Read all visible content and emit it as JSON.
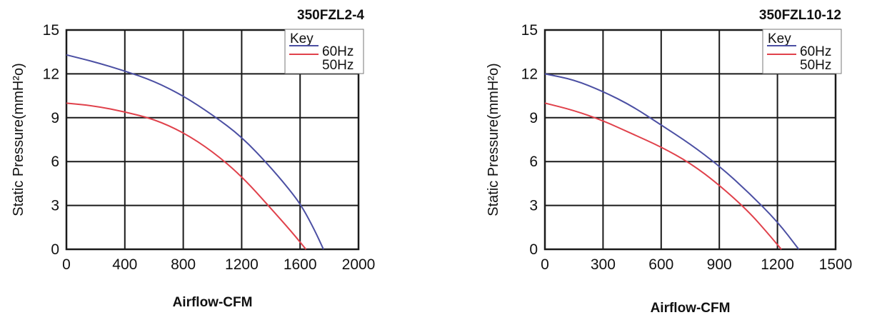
{
  "chart_data": [
    {
      "type": "line",
      "title": "350FZL2-4",
      "xlabel": "Airflow-CFM",
      "ylabel": "Static Pressure(mmH²o)",
      "xlim": [
        0,
        2000
      ],
      "ylim": [
        0,
        15
      ],
      "xticks": [
        0,
        400,
        800,
        1200,
        1600,
        2000
      ],
      "yticks": [
        0,
        3,
        6,
        9,
        12,
        15
      ],
      "grid": true,
      "legend": {
        "title": "Key",
        "placement": "top-right",
        "entries": [
          "60Hz",
          "50Hz"
        ]
      },
      "series": [
        {
          "name": "60Hz",
          "color": "#4b4fa3",
          "points": [
            [
              0,
              13.3
            ],
            [
              200,
              12.8
            ],
            [
              400,
              12.2
            ],
            [
              600,
              11.5
            ],
            [
              800,
              10.5
            ],
            [
              1000,
              9.2
            ],
            [
              1200,
              7.7
            ],
            [
              1400,
              5.6
            ],
            [
              1550,
              3.8
            ],
            [
              1620,
              2.8
            ],
            [
              1700,
              1.3
            ],
            [
              1760,
              0
            ]
          ]
        },
        {
          "name": "50Hz",
          "color": "#e0414b",
          "points": [
            [
              0,
              10.0
            ],
            [
              200,
              9.8
            ],
            [
              400,
              9.4
            ],
            [
              600,
              8.9
            ],
            [
              800,
              8.0
            ],
            [
              1000,
              6.7
            ],
            [
              1200,
              5.0
            ],
            [
              1400,
              2.8
            ],
            [
              1550,
              1.1
            ],
            [
              1640,
              0
            ]
          ]
        }
      ]
    },
    {
      "type": "line",
      "title": "350FZL10-12",
      "xlabel": "Airflow-CFM",
      "ylabel": "Static Pressure(mmH²o)",
      "xlim": [
        0,
        1500
      ],
      "ylim": [
        0,
        15
      ],
      "xticks": [
        0,
        300,
        600,
        900,
        1200,
        1500
      ],
      "yticks": [
        0,
        3,
        6,
        9,
        12,
        15
      ],
      "grid": true,
      "legend": {
        "title": "Key",
        "placement": "top-right",
        "entries": [
          "60Hz",
          "50Hz"
        ]
      },
      "series": [
        {
          "name": "60Hz",
          "color": "#4b4fa3",
          "points": [
            [
              0,
              12.0
            ],
            [
              150,
              11.6
            ],
            [
              300,
              10.8
            ],
            [
              450,
              9.8
            ],
            [
              600,
              8.5
            ],
            [
              750,
              7.2
            ],
            [
              900,
              5.7
            ],
            [
              1050,
              3.9
            ],
            [
              1200,
              1.9
            ],
            [
              1310,
              0
            ]
          ]
        },
        {
          "name": "50Hz",
          "color": "#e0414b",
          "points": [
            [
              0,
              10.0
            ],
            [
              150,
              9.5
            ],
            [
              300,
              8.8
            ],
            [
              450,
              7.9
            ],
            [
              600,
              7.0
            ],
            [
              750,
              5.9
            ],
            [
              900,
              4.4
            ],
            [
              1050,
              2.6
            ],
            [
              1150,
              1.1
            ],
            [
              1220,
              0
            ]
          ]
        }
      ]
    }
  ]
}
